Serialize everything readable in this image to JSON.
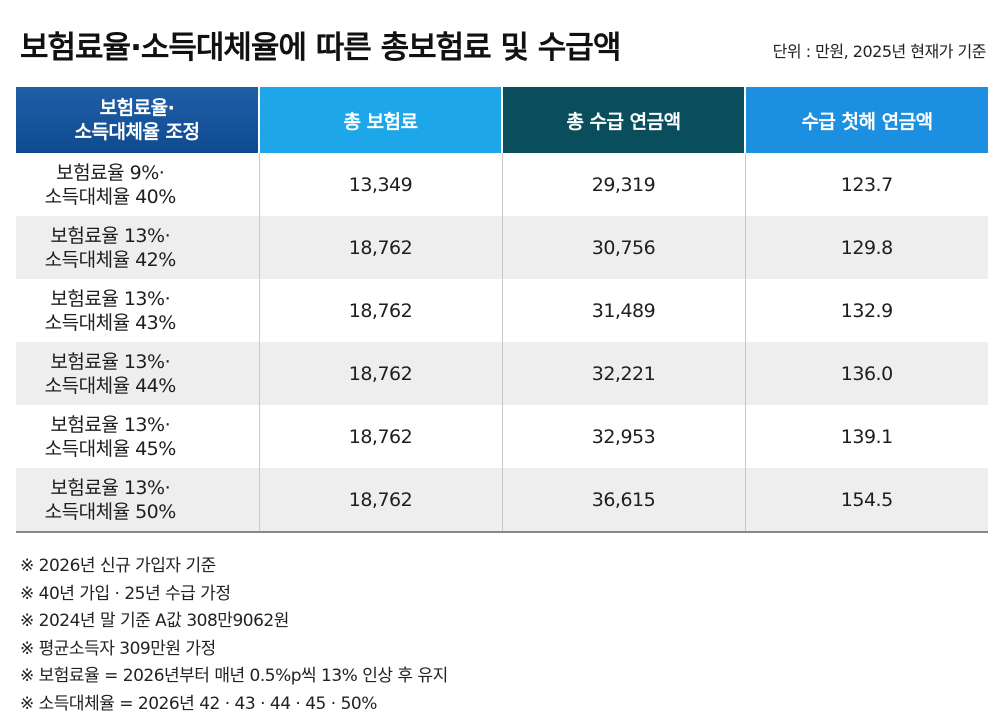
{
  "title": "보험료율·소득대체율에 따른 총보험료 및 수급액",
  "unit": "단위 : 만원, 2025년 현재가 기준",
  "chart_data": {
    "type": "table",
    "columns": [
      "보험료율·소득대체율 조정",
      "총 보험료",
      "총 수급 연금액",
      "수급 첫해 연금액"
    ],
    "header_lines": [
      "보험료율·",
      "소득대체율 조정"
    ],
    "rows": [
      {
        "cond1": "보험료율 9%·",
        "cond2": "소득대체율 40%",
        "total_premium": "13,349",
        "total_pension": "29,319",
        "first_year": "123.7"
      },
      {
        "cond1": "보험료율 13%·",
        "cond2": "소득대체율 42%",
        "total_premium": "18,762",
        "total_pension": "30,756",
        "first_year": "129.8"
      },
      {
        "cond1": "보험료율 13%·",
        "cond2": "소득대체율 43%",
        "total_premium": "18,762",
        "total_pension": "31,489",
        "first_year": "132.9"
      },
      {
        "cond1": "보험료율 13%·",
        "cond2": "소득대체율 44%",
        "total_premium": "18,762",
        "total_pension": "32,221",
        "first_year": "136.0"
      },
      {
        "cond1": "보험료율 13%·",
        "cond2": "소득대체율 45%",
        "total_premium": "18,762",
        "total_pension": "32,953",
        "first_year": "139.1"
      },
      {
        "cond1": "보험료율 13%·",
        "cond2": "소득대체율 50%",
        "total_premium": "18,762",
        "total_pension": "36,615",
        "first_year": "154.5"
      }
    ]
  },
  "notes": [
    "※ 2026년 신규 가입자 기준",
    "※ 40년 가입 · 25년 수급 가정",
    "※ 2024년 말 기준 A값 308만9062원",
    "※ 평균소득자 309만원 가정",
    "※ 보험료율 = 2026년부터 매년 0.5%p씩 13% 인상 후 유지",
    "※ 소득대체율 = 2026년 42 · 43 · 44 · 45 · 50%"
  ],
  "colors": {
    "header_condition": "#1553a0",
    "header_premium": "#1da7e8",
    "header_total_pension": "#0a4d5c",
    "header_first_year": "#1c8fe0",
    "row_alt": "#eeeeee"
  }
}
